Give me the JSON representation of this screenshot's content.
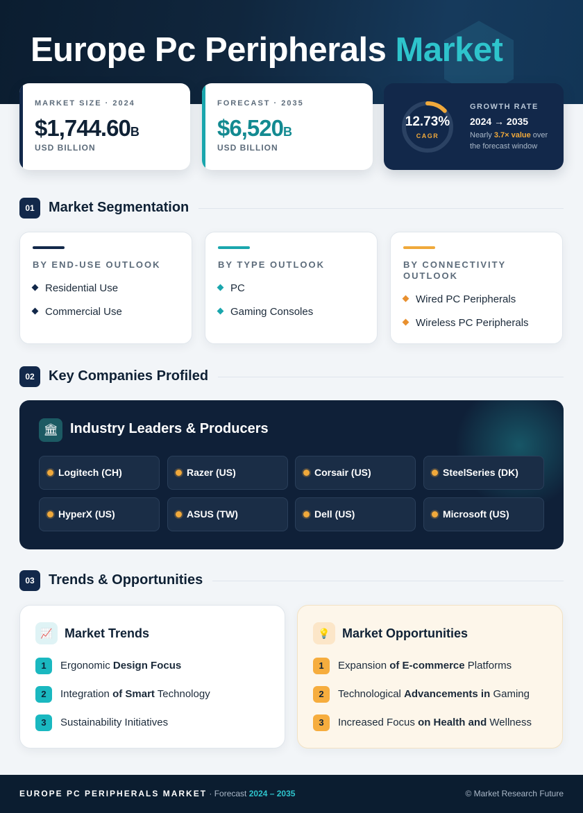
{
  "header": {
    "title_main": "Europe Pc Peripherals",
    "title_highlight": "Market"
  },
  "stats": {
    "market_size": {
      "label": "MARKET SIZE · 2024",
      "value": "$1,744.60",
      "unit": "B",
      "sub": "USD BILLION"
    },
    "forecast": {
      "label": "FORECAST · 2035",
      "value": "$6,520",
      "unit": "B",
      "sub": "USD BILLION"
    },
    "growth": {
      "cagr_value": "12.73%",
      "cagr_label": "CAGR",
      "cagr_fraction": 0.13,
      "label": "GROWTH RATE",
      "range": "2024 → 2035",
      "note_pre": "Nearly ",
      "note_highlight": "3.7× value",
      "note_post": " over the forecast window"
    }
  },
  "sections": {
    "s1": {
      "num": "01",
      "title": "Market Segmentation"
    },
    "s2": {
      "num": "02",
      "title": "Key Companies Profiled"
    },
    "s3": {
      "num": "03",
      "title": "Trends & Opportunities"
    }
  },
  "segmentation": [
    {
      "label": "BY END-USE OUTLOOK",
      "items": [
        "Residential Use",
        "Commercial Use"
      ],
      "color": "#12284a"
    },
    {
      "label": "BY TYPE OUTLOOK",
      "items": [
        "PC",
        "Gaming Consoles"
      ],
      "color": "#1aa6ad"
    },
    {
      "label": "BY CONNECTIVITY OUTLOOK",
      "items": [
        "Wired PC Peripherals",
        "Wireless PC Peripherals"
      ],
      "color": "#f0a93b"
    }
  ],
  "companies": {
    "icon": "bank-icon",
    "title": "Industry Leaders & Producers",
    "list": [
      "Logitech (CH)",
      "Razer (US)",
      "Corsair (US)",
      "SteelSeries (DK)",
      "HyperX (US)",
      "ASUS (TW)",
      "Dell (US)",
      "Microsoft (US)"
    ]
  },
  "trends": {
    "icon": "chart-line-icon",
    "title": "Market Trends",
    "items": [
      {
        "num": "1",
        "pre": "Ergonomic ",
        "bold": "Design Focus",
        "post": ""
      },
      {
        "num": "2",
        "pre": "Integration ",
        "bold": "of Smart",
        "post": " Technology"
      },
      {
        "num": "3",
        "pre": "Sustainability Initiatives",
        "bold": "",
        "post": ""
      }
    ]
  },
  "opportunities": {
    "icon": "lightbulb-icon",
    "title": "Market Opportunities",
    "items": [
      {
        "num": "1",
        "pre": "Expansion ",
        "bold": "of E-commerce",
        "post": " Platforms"
      },
      {
        "num": "2",
        "pre": "Technological ",
        "bold": "Advancements in",
        "post": " Gaming"
      },
      {
        "num": "3",
        "pre": "Increased Focus ",
        "bold": "on Health and",
        "post": " Wellness"
      }
    ]
  },
  "footer": {
    "name": "EUROPE PC PERIPHERALS MARKET",
    "mid": " · Forecast ",
    "range": "2024 – 2035",
    "copyright": "© Market Research Future"
  }
}
